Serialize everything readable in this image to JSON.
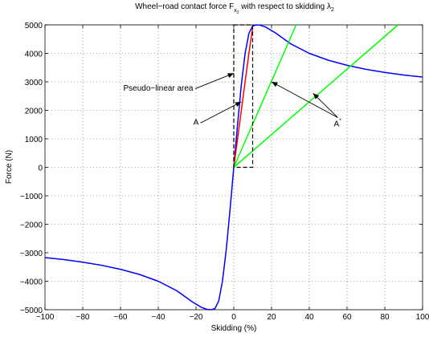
{
  "chart_data": {
    "type": "line",
    "title": "Wheel−road contact force F",
    "title_sub": "x",
    "title_sub2": "2",
    "title_mid": " with respect to skidding λ",
    "title_sub3": "2",
    "xlabel": "Skidding (%)",
    "ylabel": "Force (N)",
    "xlim": [
      -100,
      100
    ],
    "ylim": [
      -5000,
      5000
    ],
    "grid": true,
    "x_ticks": [
      -100,
      -80,
      -60,
      -40,
      -20,
      0,
      20,
      40,
      60,
      80,
      100
    ],
    "x_tick_labels": [
      "−100",
      "−80",
      "−60",
      "−40",
      "−20",
      "0",
      "20",
      "40",
      "60",
      "80",
      "100"
    ],
    "y_ticks": [
      -5000,
      -4000,
      -3000,
      -2000,
      -1000,
      0,
      1000,
      2000,
      3000,
      4000,
      5000
    ],
    "y_tick_labels": [
      "−5000",
      "−4000",
      "−3000",
      "−2000",
      "−1000",
      "0",
      "1000",
      "2000",
      "3000",
      "4000",
      "5000"
    ],
    "series": [
      {
        "kind": "curve",
        "color": "#0000ff",
        "points": [
          [
            -100,
            -3170
          ],
          [
            -90,
            -3240
          ],
          [
            -80,
            -3330
          ],
          [
            -70,
            -3440
          ],
          [
            -60,
            -3580
          ],
          [
            -50,
            -3760
          ],
          [
            -40,
            -4000
          ],
          [
            -30,
            -4340
          ],
          [
            -22,
            -4720
          ],
          [
            -17,
            -4920
          ],
          [
            -14,
            -4990
          ],
          [
            -12,
            -5000
          ],
          [
            -10,
            -4960
          ],
          [
            -8,
            -4700
          ],
          [
            -6,
            -4000
          ],
          [
            -4,
            -2900
          ],
          [
            -2,
            -1500
          ],
          [
            0,
            0
          ],
          [
            2,
            1500
          ],
          [
            4,
            2900
          ],
          [
            6,
            4000
          ],
          [
            8,
            4700
          ],
          [
            10,
            4960
          ],
          [
            12,
            5000
          ],
          [
            14,
            4990
          ],
          [
            17,
            4920
          ],
          [
            22,
            4720
          ],
          [
            30,
            4340
          ],
          [
            40,
            4000
          ],
          [
            50,
            3760
          ],
          [
            60,
            3580
          ],
          [
            70,
            3440
          ],
          [
            80,
            3330
          ],
          [
            90,
            3240
          ],
          [
            100,
            3170
          ]
        ]
      },
      {
        "kind": "curve",
        "color": "#ff0000",
        "points": [
          [
            0,
            0
          ],
          [
            2,
            1000
          ],
          [
            4,
            2000
          ],
          [
            6,
            3000
          ],
          [
            8,
            4000
          ],
          [
            10,
            4900
          ]
        ]
      },
      {
        "kind": "curve",
        "color": "#00ff00",
        "points": [
          [
            0,
            0
          ],
          [
            33,
            5000
          ]
        ]
      },
      {
        "kind": "curve",
        "color": "#00ff00",
        "points": [
          [
            0,
            0
          ],
          [
            87,
            5000
          ]
        ]
      }
    ],
    "highlight_box": {
      "x0": 0,
      "x1": 10,
      "y0": 0,
      "y1": 5000
    },
    "annotations": [
      {
        "label": "Pseudo−linear area",
        "text_at": [
          -40,
          2800
        ],
        "arrow_to": [
          0,
          3300
        ]
      },
      {
        "label": "A",
        "text_at": [
          -20,
          1600
        ],
        "arrow_to": [
          4,
          2300
        ]
      },
      {
        "label": "A",
        "sup": "*",
        "text_at": [
          55,
          1550
        ],
        "arrows_to": [
          [
            20,
            3000
          ],
          [
            42,
            2600
          ]
        ]
      }
    ]
  }
}
